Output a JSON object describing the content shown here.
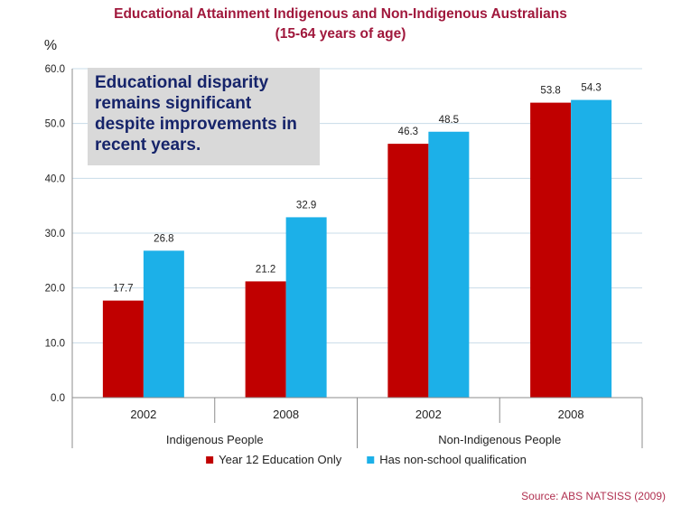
{
  "chart_data": {
    "type": "bar",
    "title": "Educational Attainment Indigenous and Non-Indigenous Australians",
    "subtitle": "(15-64 years of age)",
    "ylabel": "%",
    "ylim": [
      0,
      60
    ],
    "yticks": [
      0,
      10,
      20,
      30,
      40,
      50,
      60
    ],
    "ytick_labels": [
      "0.0",
      "10.0",
      "20.0",
      "30.0",
      "40.0",
      "50.0",
      "60.0"
    ],
    "grid": true,
    "legend_position": "bottom",
    "categories": [
      "2002",
      "2008",
      "2002",
      "2008"
    ],
    "category_groups": [
      {
        "label": "Indigenous People",
        "members": [
          0,
          1
        ]
      },
      {
        "label": "Non-Indigenous People",
        "members": [
          2,
          3
        ]
      }
    ],
    "series": [
      {
        "name": "Year 12 Education Only",
        "color": "#c00000",
        "values": [
          17.7,
          21.2,
          46.3,
          53.8
        ],
        "value_labels": [
          "17.7",
          "21.2",
          "46.3",
          "53.8"
        ]
      },
      {
        "name": "Has non-school qualification",
        "color": "#1cb0e8",
        "values": [
          26.8,
          32.9,
          48.5,
          54.3
        ],
        "value_labels": [
          "26.8",
          "32.9",
          "48.5",
          "54.3"
        ]
      }
    ],
    "annotation": "Educational disparity remains significant despite improvements in recent years.",
    "source": "Source: ABS  NATSISS (2009)"
  },
  "colors": {
    "title": "#a0183c",
    "source": "#b03050",
    "annotation_text": "#16246a",
    "annotation_bg": "#d9d9d9",
    "grid": "#c8dce8",
    "axis": "#8c8c8c",
    "text": "#222222"
  }
}
